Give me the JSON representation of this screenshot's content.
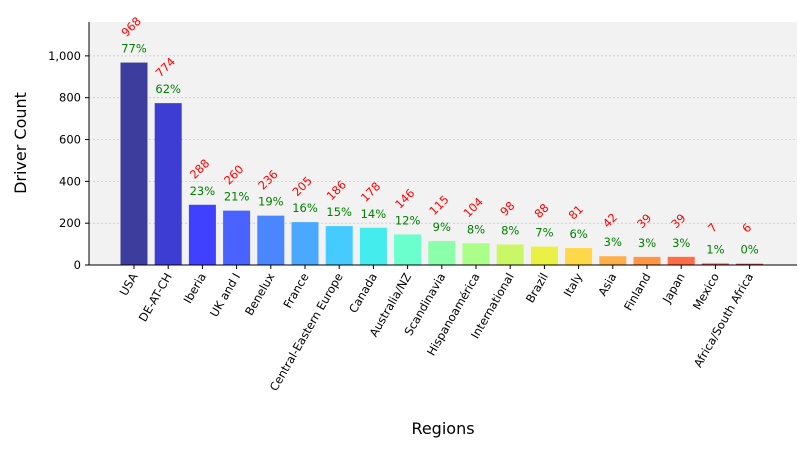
{
  "chart_data": {
    "type": "bar",
    "xlabel": "Regions",
    "ylabel": "Driver Count",
    "ylim": [
      0,
      1162
    ],
    "yticks": [
      0,
      200,
      400,
      600,
      800,
      1000
    ],
    "ytick_labels": [
      "0",
      "200",
      "400",
      "600",
      "800",
      "1,000"
    ],
    "grid": "y-dashed",
    "categories": [
      "USA",
      "DE-AT-CH",
      "Iberia",
      "UK and I",
      "Benelux",
      "France",
      "Central-Eastern Europe",
      "Canada",
      "Australia/NZ",
      "Scandinavia",
      "Hispanoamérica",
      "International",
      "Brazil",
      "Italy",
      "Asia",
      "Finland",
      "Japan",
      "Mexico",
      "Africa/South Africa"
    ],
    "values": [
      968,
      774,
      288,
      260,
      236,
      205,
      186,
      178,
      146,
      115,
      104,
      98,
      88,
      81,
      42,
      39,
      39,
      7,
      6
    ],
    "percent_labels": [
      "77%",
      "62%",
      "23%",
      "21%",
      "19%",
      "16%",
      "15%",
      "14%",
      "12%",
      "9%",
      "8%",
      "8%",
      "7%",
      "6%",
      "3%",
      "3%",
      "3%",
      "1%",
      "0%"
    ],
    "colors": [
      "#3d3d9e",
      "#3d3dd4",
      "#4040ff",
      "#4a62ff",
      "#4a86ff",
      "#4aa8ff",
      "#45cbff",
      "#45ecee",
      "#6affcc",
      "#8cffaa",
      "#aaff88",
      "#c9f766",
      "#ebf045",
      "#ffd84a",
      "#ffb04a",
      "#ff9545",
      "#ff6c45",
      "#d94545",
      "#a64040"
    ],
    "value_label_color": "#ff0000",
    "percent_label_color": "#008000",
    "plot_background": "#f2f2f2"
  }
}
